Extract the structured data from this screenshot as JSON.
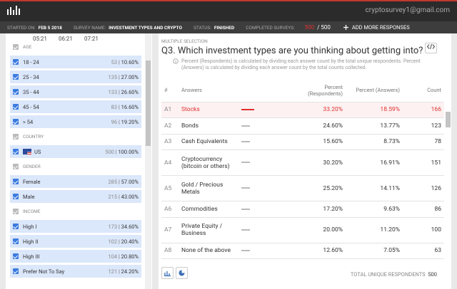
{
  "header": {
    "email": "cryptosurvey1@gmail.com"
  },
  "info_bar": {
    "started_on_label": "STARTED ON:",
    "started_on": "FEB 5 2018",
    "survey_name_label": "SURVEY NAME:",
    "survey_name": "INVESTMENT TYPES AND CRYPTO",
    "status_label": "STATUS:",
    "status": "FINISHED",
    "completed_label": "COMPLETED SURVEYS:",
    "completed": "500",
    "completed_total": "/ 500",
    "add_button": "ADD MORE RESPONSES"
  },
  "timeline": [
    "05:21",
    "06:21",
    "07:21"
  ],
  "filters": [
    {
      "group": "AGE",
      "items": [
        {
          "label": "18 - 24",
          "count": "53",
          "percent": "10.60%"
        },
        {
          "label": "25 - 34",
          "count": "135",
          "percent": "27.00%"
        },
        {
          "label": "35 - 44",
          "count": "133",
          "percent": "26.60%"
        },
        {
          "label": "45 - 54",
          "count": "83",
          "percent": "16.60%"
        },
        {
          "label": "> 54",
          "count": "96",
          "percent": "19.20%"
        }
      ]
    },
    {
      "group": "COUNTRY",
      "items": [
        {
          "label": "US",
          "count": "500",
          "percent": "100.00%"
        }
      ]
    },
    {
      "group": "GENDER",
      "items": [
        {
          "label": "Female",
          "count": "285",
          "percent": "57.00%"
        },
        {
          "label": "Male",
          "count": "215",
          "percent": "43.00%"
        }
      ]
    },
    {
      "group": "INCOME",
      "items": [
        {
          "label": "High I",
          "count": "173",
          "percent": "34.60%"
        },
        {
          "label": "High II",
          "count": "102",
          "percent": "20.40%"
        },
        {
          "label": "High III",
          "count": "104",
          "percent": "20.80%"
        },
        {
          "label": "Prefer Not To Say",
          "count": "121",
          "percent": "24.20%"
        }
      ]
    }
  ],
  "question": {
    "kind": "MULTIPLE SELECTION",
    "title": "Q3. Which investment types are you thinking about getting into?",
    "note": "Percent (Respondents) is calculated by dividing each answer count by the total unique respondents. Percent (Answers) is calculated by dividing each answer count by the total counts collected.",
    "columns": [
      "#",
      "Answers",
      "Percent (Respondents)",
      "Percent (Answers)",
      "Count"
    ],
    "rows": [
      [
        "A1",
        "Stocks",
        "33.20%",
        "18.59%",
        "166"
      ],
      [
        "A2",
        "Bonds",
        "24.60%",
        "13.77%",
        "123"
      ],
      [
        "A3",
        "Cash Equivalents",
        "15.60%",
        "8.73%",
        "78"
      ],
      [
        "A4",
        "Cryptocurrency (bitcoin or others)",
        "30.20%",
        "16.91%",
        "151"
      ],
      [
        "A5",
        "Gold / Precious Metals",
        "25.20%",
        "14.11%",
        "126"
      ],
      [
        "A6",
        "Commodities",
        "17.20%",
        "9.63%",
        "86"
      ],
      [
        "A7",
        "Private Equity / Business",
        "20.00%",
        "11.20%",
        "100"
      ],
      [
        "A8",
        "None of the above",
        "12.60%",
        "7.05%",
        "63"
      ]
    ],
    "footer_label": "TOTAL UNIQUE RESPONDENTS",
    "footer_value": "500"
  }
}
